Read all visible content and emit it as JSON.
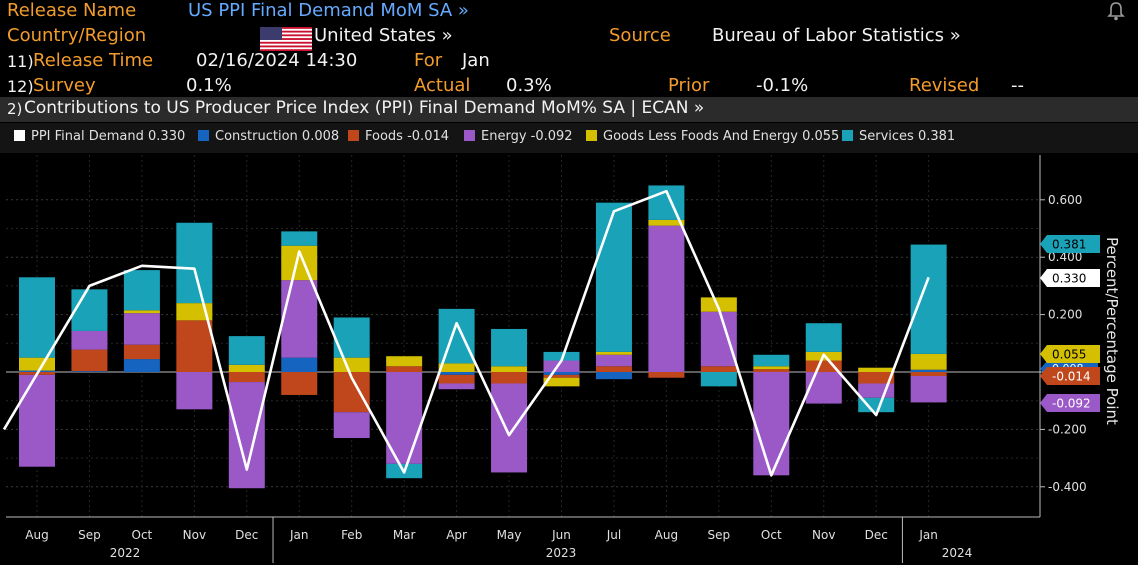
{
  "header": {
    "release_name_label": "Release Name",
    "release_name_value": "US PPI Final Demand MoM SA »",
    "country_label": "Country/Region",
    "country_value": "United States »",
    "source_label": "Source",
    "source_value": "Bureau of Labor Statistics »",
    "release_time_num": "11)",
    "release_time_label": "Release Time",
    "release_time_value": "02/16/2024 14:30",
    "for_label": "For",
    "for_value": "Jan",
    "survey_num": "12)",
    "survey_label": "Survey",
    "survey_value": "0.1%",
    "actual_label": "Actual",
    "actual_value": "0.3%",
    "prior_label": "Prior",
    "prior_value": "-0.1%",
    "revised_label": "Revised",
    "revised_value": "--",
    "alert_icon": "bell-icon"
  },
  "title_bar": {
    "num": "2)",
    "text": "Contributions to US Producer Price Index (PPI) Final Demand MoM% SA | ECAN »"
  },
  "legend": [
    {
      "label": "PPI Final Demand",
      "value": "0.330",
      "color": "#ffffff"
    },
    {
      "label": "Construction",
      "value": "0.008",
      "color": "#1565c0"
    },
    {
      "label": "Foods",
      "value": "-0.014",
      "color": "#c0471c"
    },
    {
      "label": "Energy",
      "value": "-0.092",
      "color": "#9b59c8"
    },
    {
      "label": "Goods Less Foods And Energy",
      "value": "0.055",
      "color": "#d4c000"
    },
    {
      "label": "Services",
      "value": "0.381",
      "color": "#1aa3b8"
    }
  ],
  "chart_data": {
    "type": "bar",
    "stacked": true,
    "categories": [
      "Aug",
      "Sep",
      "Oct",
      "Nov",
      "Dec",
      "Jan",
      "Feb",
      "Mar",
      "Apr",
      "May",
      "Jun",
      "Jul",
      "Aug",
      "Sep",
      "Oct",
      "Nov",
      "Dec",
      "Jan"
    ],
    "year_labels": [
      {
        "text": "2022",
        "at": "Aug–Dec 2022"
      },
      {
        "text": "2023",
        "at": "Jan–Dec 2023"
      },
      {
        "text": "2024",
        "at": "Jan 2024"
      }
    ],
    "series": [
      {
        "name": "Construction",
        "color": "#1565c0",
        "values": [
          0.005,
          0.003,
          0.045,
          0.0,
          0.0,
          0.05,
          0.0,
          0.0,
          -0.01,
          0.0,
          -0.01,
          -0.025,
          0.0,
          0.0,
          0.0,
          0.0,
          0.0,
          0.008
        ]
      },
      {
        "name": "Foods",
        "color": "#c0471c",
        "values": [
          -0.01,
          0.075,
          0.05,
          0.18,
          -0.035,
          -0.08,
          -0.14,
          0.02,
          -0.03,
          -0.04,
          -0.01,
          0.02,
          -0.02,
          0.02,
          0.01,
          0.04,
          -0.04,
          -0.014
        ]
      },
      {
        "name": "Energy",
        "color": "#9b59c8",
        "values": [
          -0.32,
          0.065,
          0.11,
          -0.13,
          -0.37,
          0.27,
          -0.09,
          -0.32,
          -0.02,
          -0.31,
          0.04,
          0.04,
          0.51,
          0.19,
          -0.36,
          -0.11,
          -0.05,
          -0.092
        ]
      },
      {
        "name": "Goods Less Foods And Energy",
        "color": "#d4c000",
        "values": [
          0.045,
          0.0,
          0.01,
          0.06,
          0.025,
          0.12,
          0.05,
          0.035,
          0.03,
          0.02,
          -0.03,
          0.01,
          0.02,
          0.05,
          0.01,
          0.03,
          0.015,
          0.055
        ]
      },
      {
        "name": "Services",
        "color": "#1aa3b8",
        "values": [
          0.28,
          0.145,
          0.14,
          0.28,
          0.1,
          0.05,
          0.14,
          -0.05,
          0.19,
          0.13,
          0.03,
          0.52,
          0.12,
          -0.05,
          0.04,
          0.1,
          -0.05,
          0.381
        ]
      }
    ],
    "line": {
      "name": "PPI Final Demand",
      "color": "#ffffff",
      "values": [
        -0.2,
        0.3,
        0.37,
        0.36,
        -0.34,
        0.42,
        -0.02,
        -0.35,
        0.17,
        -0.22,
        0.04,
        0.56,
        0.63,
        0.22,
        -0.36,
        0.06,
        -0.15,
        0.33
      ]
    },
    "ylabel": "Percent/Percentage Point",
    "ylim": [
      -0.52,
      0.7
    ],
    "yticks": [
      "0.600",
      "0.400",
      "0.200",
      "0.000",
      "-0.200",
      "-0.400"
    ],
    "right_labels": [
      {
        "text": "0.381",
        "color": "#1aa3b8"
      },
      {
        "text": "0.330",
        "color": "#ffffff"
      },
      {
        "text": "0.055",
        "color": "#d4c000"
      },
      {
        "text": "-0.014",
        "color": "#c0471c"
      },
      {
        "text": "-0.092",
        "color": "#9b59c8"
      }
    ],
    "hidden_label": "0.008"
  }
}
